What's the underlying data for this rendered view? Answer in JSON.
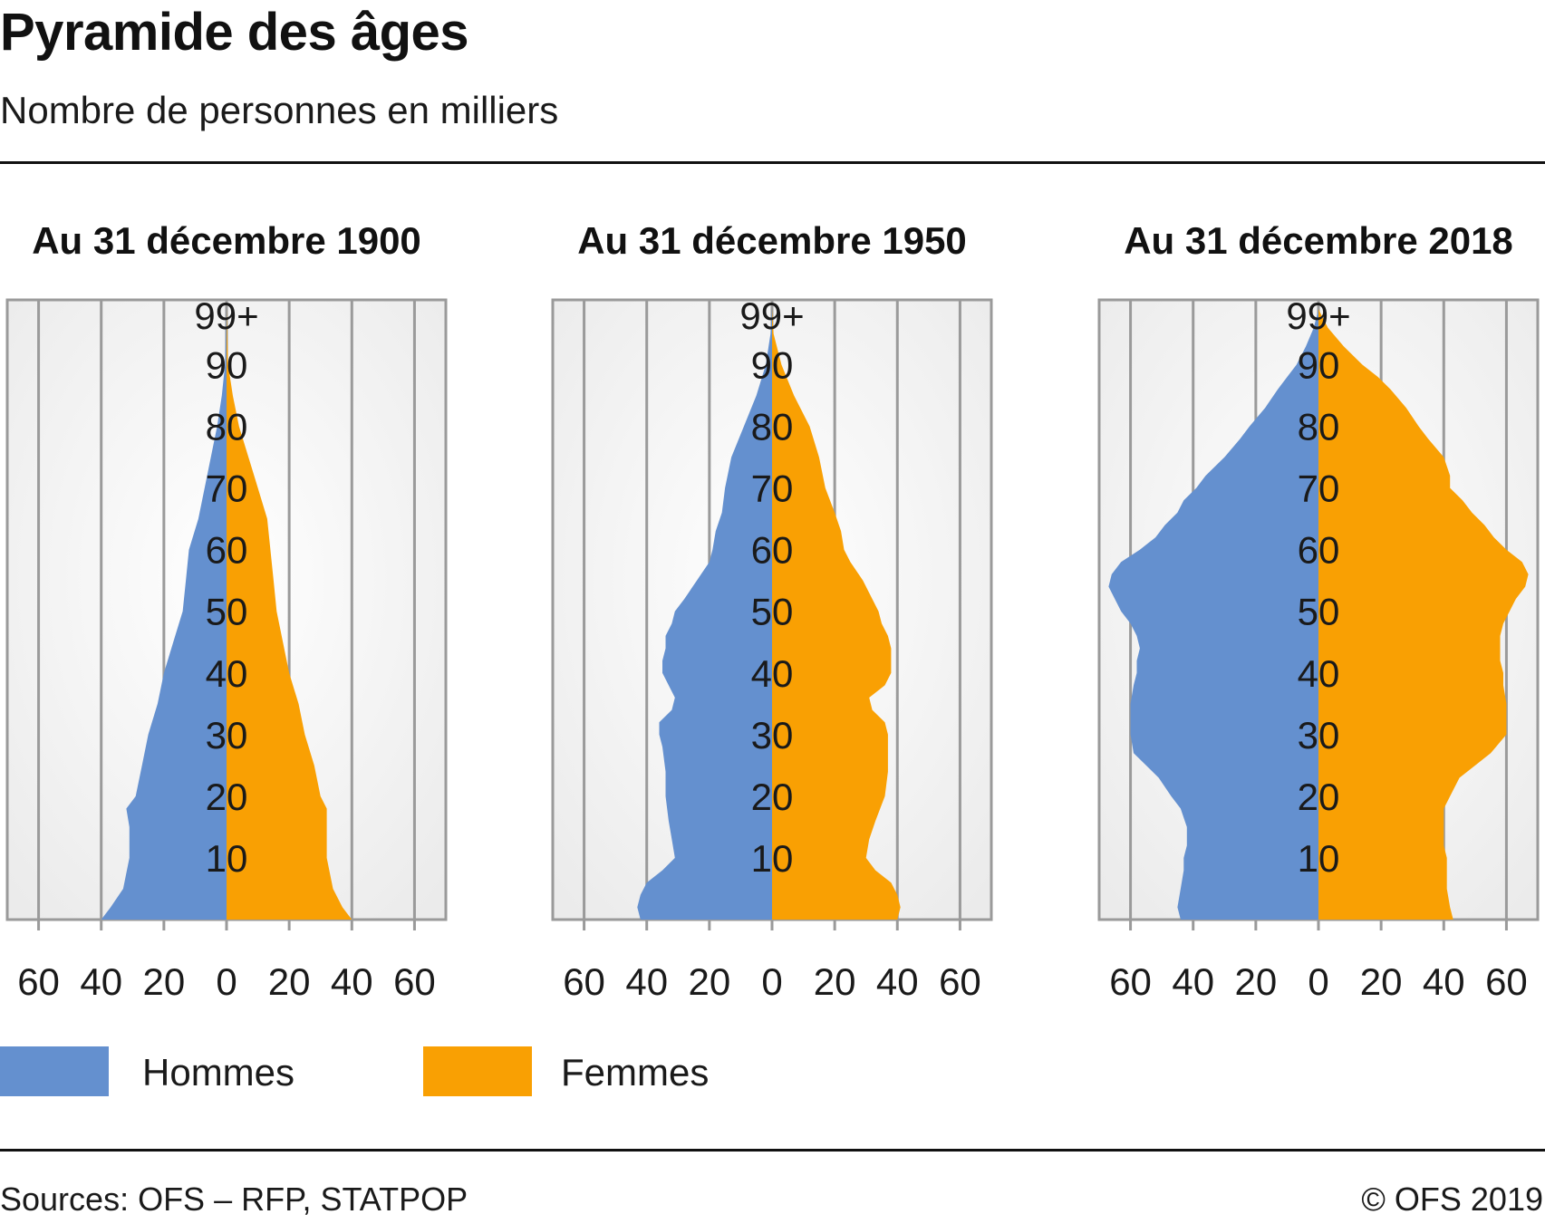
{
  "title": "Pyramide des âges",
  "subtitle": "Nombre de personnes en milliers",
  "legend": [
    {
      "label": "Hommes",
      "color": "#6490cf"
    },
    {
      "label": "Femmes",
      "color": "#f9a003"
    }
  ],
  "source": "Sources: OFS – RFP, STATPOP",
  "copyright": "© OFS 2019",
  "chart_data": [
    {
      "type": "population-pyramid",
      "title": "Au 31 décembre 1900",
      "xlim": [
        -70,
        70
      ],
      "x_ticks": [
        -60,
        -40,
        -20,
        0,
        20,
        40,
        60
      ],
      "x_tick_labels": [
        "60",
        "40",
        "20",
        "0",
        "20",
        "40",
        "60"
      ],
      "y_tick_labels": [
        {
          "age": 10,
          "label": "10"
        },
        {
          "age": 20,
          "label": "20"
        },
        {
          "age": 30,
          "label": "30"
        },
        {
          "age": 40,
          "label": "40"
        },
        {
          "age": 50,
          "label": "50"
        },
        {
          "age": 60,
          "label": "60"
        },
        {
          "age": 70,
          "label": "70"
        },
        {
          "age": 80,
          "label": "80"
        },
        {
          "age": 90,
          "label": "90"
        },
        {
          "age": 98,
          "label": "99+"
        }
      ],
      "series": [
        {
          "name": "Hommes",
          "ages": [
            0,
            2,
            5,
            10,
            15,
            18,
            20,
            25,
            30,
            35,
            40,
            45,
            50,
            55,
            60,
            65,
            70,
            75,
            80,
            85,
            90,
            99
          ],
          "values": [
            40,
            37,
            33,
            31,
            31,
            32,
            29,
            27,
            25,
            22,
            20,
            17,
            14,
            13,
            12,
            9,
            7,
            5,
            3,
            1.5,
            0.5,
            0
          ]
        },
        {
          "name": "Femmes",
          "ages": [
            0,
            2,
            5,
            10,
            15,
            18,
            20,
            25,
            30,
            35,
            40,
            45,
            50,
            55,
            60,
            65,
            70,
            75,
            80,
            85,
            90,
            99
          ],
          "values": [
            40,
            37,
            34,
            32,
            32,
            32,
            30,
            28,
            25,
            23,
            20,
            18,
            16,
            15,
            14,
            13,
            10,
            7,
            4,
            2,
            0.5,
            0
          ]
        }
      ]
    },
    {
      "type": "population-pyramid",
      "title": "Au 31 décembre 1950",
      "xlim": [
        -70,
        70
      ],
      "x_ticks": [
        -60,
        -40,
        -20,
        0,
        20,
        40,
        60
      ],
      "x_tick_labels": [
        "60",
        "40",
        "20",
        "0",
        "20",
        "40",
        "60"
      ],
      "y_tick_labels": [
        {
          "age": 10,
          "label": "10"
        },
        {
          "age": 20,
          "label": "20"
        },
        {
          "age": 30,
          "label": "30"
        },
        {
          "age": 40,
          "label": "40"
        },
        {
          "age": 50,
          "label": "50"
        },
        {
          "age": 60,
          "label": "60"
        },
        {
          "age": 70,
          "label": "70"
        },
        {
          "age": 80,
          "label": "80"
        },
        {
          "age": 90,
          "label": "90"
        },
        {
          "age": 98,
          "label": "99+"
        }
      ],
      "series": [
        {
          "name": "Hommes",
          "ages": [
            0,
            2,
            4,
            6,
            8,
            10,
            13,
            16,
            20,
            24,
            28,
            30,
            32,
            34,
            36,
            38,
            40,
            42,
            44,
            46,
            48,
            50,
            52,
            55,
            58,
            60,
            63,
            66,
            70,
            75,
            80,
            85,
            90,
            95,
            99
          ],
          "values": [
            42,
            43,
            42,
            40,
            35,
            31,
            32,
            33,
            34,
            34,
            35,
            36,
            36,
            32,
            31,
            33,
            35,
            35,
            34,
            34,
            32,
            31,
            28,
            24,
            20,
            19,
            18,
            16,
            15,
            13,
            9,
            5,
            2,
            0.5,
            0
          ]
        },
        {
          "name": "Femmes",
          "ages": [
            0,
            2,
            4,
            6,
            8,
            10,
            13,
            16,
            20,
            24,
            28,
            30,
            32,
            34,
            36,
            38,
            40,
            42,
            44,
            46,
            48,
            50,
            52,
            55,
            58,
            60,
            63,
            66,
            70,
            75,
            80,
            85,
            90,
            95,
            99
          ],
          "values": [
            40,
            41,
            40,
            38,
            33,
            30,
            31,
            33,
            36,
            37,
            37,
            37,
            36,
            32,
            31,
            36,
            38,
            38,
            38,
            37,
            35,
            34,
            32,
            29,
            25,
            23,
            22,
            20,
            17,
            15,
            12,
            7,
            3,
            0.5,
            0
          ]
        }
      ]
    },
    {
      "type": "population-pyramid",
      "title": "Au 31 décembre 2018",
      "xlim": [
        -70,
        70
      ],
      "x_ticks": [
        -60,
        -40,
        -20,
        0,
        20,
        40,
        60
      ],
      "x_tick_labels": [
        "60",
        "40",
        "20",
        "0",
        "20",
        "40",
        "60"
      ],
      "y_tick_labels": [
        {
          "age": 10,
          "label": "10"
        },
        {
          "age": 20,
          "label": "20"
        },
        {
          "age": 30,
          "label": "30"
        },
        {
          "age": 40,
          "label": "40"
        },
        {
          "age": 50,
          "label": "50"
        },
        {
          "age": 60,
          "label": "60"
        },
        {
          "age": 70,
          "label": "70"
        },
        {
          "age": 80,
          "label": "80"
        },
        {
          "age": 90,
          "label": "90"
        },
        {
          "age": 98,
          "label": "99+"
        }
      ],
      "series": [
        {
          "name": "Hommes",
          "ages": [
            0,
            2,
            5,
            8,
            10,
            12,
            15,
            18,
            20,
            23,
            25,
            27,
            30,
            32,
            35,
            38,
            40,
            42,
            44,
            46,
            48,
            50,
            52,
            54,
            56,
            58,
            60,
            62,
            64,
            66,
            68,
            70,
            72,
            75,
            78,
            80,
            83,
            86,
            88,
            90,
            93,
            96,
            99
          ],
          "values": [
            44,
            45,
            44,
            43,
            43,
            42,
            42,
            44,
            47,
            51,
            55,
            59,
            60,
            60,
            60,
            59,
            58,
            58,
            57,
            58,
            60,
            63,
            65,
            67,
            66,
            63,
            57,
            52,
            49,
            45,
            43,
            39,
            36,
            30,
            25,
            22,
            17,
            13,
            10,
            7,
            4,
            1.5,
            0
          ]
        },
        {
          "name": "Femmes",
          "ages": [
            0,
            2,
            5,
            8,
            10,
            12,
            15,
            18,
            20,
            23,
            25,
            27,
            30,
            32,
            35,
            38,
            40,
            42,
            44,
            46,
            48,
            50,
            52,
            54,
            56,
            58,
            60,
            62,
            64,
            66,
            68,
            70,
            72,
            75,
            78,
            80,
            83,
            86,
            88,
            90,
            93,
            96,
            99
          ],
          "values": [
            43,
            42,
            41,
            41,
            41,
            40,
            40,
            40,
            42,
            45,
            50,
            55,
            60,
            60,
            60,
            59,
            59,
            58,
            58,
            58,
            59,
            61,
            63,
            66,
            67,
            65,
            60,
            56,
            53,
            49,
            46,
            42,
            42,
            40,
            35,
            32,
            28,
            23,
            19,
            14,
            8,
            3,
            0
          ]
        }
      ]
    }
  ]
}
